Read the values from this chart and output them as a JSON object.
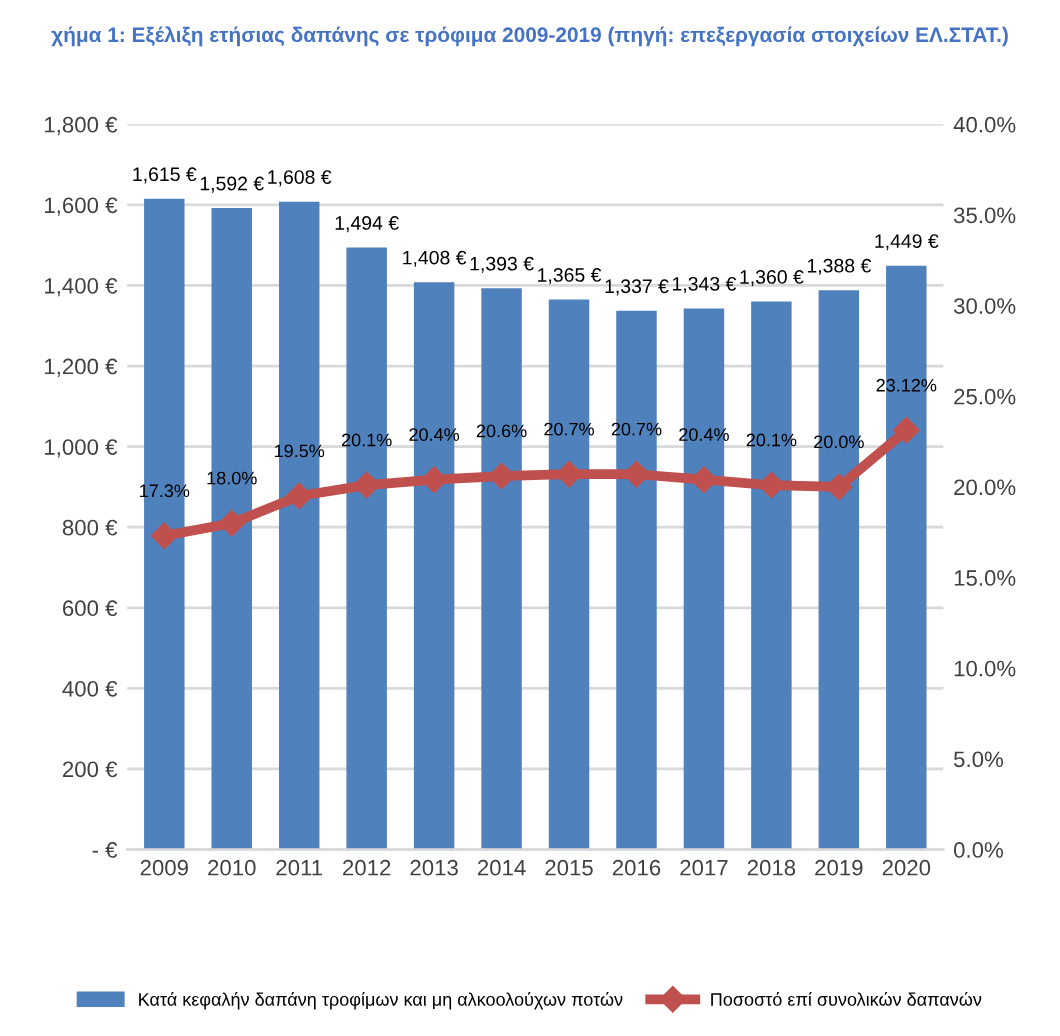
{
  "chart_data": {
    "type": "bar",
    "title": "χήμα 1: Εξέλιξη ετήσιας δαπάνης σε τρόφιμα 2009-2019 (πηγή: επεξεργασία στοιχείων ΕΛ.ΣΤΑΤ.)",
    "categories": [
      "2009",
      "2010",
      "2011",
      "2012",
      "2013",
      "2014",
      "2015",
      "2016",
      "2017",
      "2018",
      "2019",
      "2020"
    ],
    "series": [
      {
        "name": "Κατά κεφαλήν δαπάνη τροφίμων και μη αλκοολούχων ποτών",
        "color": "#4f81bd",
        "values": [
          1615,
          1592,
          1608,
          1494,
          1408,
          1393,
          1365,
          1337,
          1343,
          1360,
          1388,
          1449
        ],
        "value_labels": [
          "1,615 €",
          "1,592 €",
          "1,608 €",
          "1,494 €",
          "1,408 €",
          "1,393 €",
          "1,365 €",
          "1,337 €",
          "1,343 €",
          "1,360 €",
          "1,388 €",
          "1,449 €"
        ]
      },
      {
        "name": "Ποσοστό επί συνολικών δαπανών",
        "type": "line",
        "axis": "y2",
        "color": "#c0504d",
        "marker": "diamond",
        "values": [
          17.3,
          18.0,
          19.5,
          20.1,
          20.4,
          20.6,
          20.7,
          20.7,
          20.4,
          20.1,
          20.0,
          23.12
        ],
        "value_labels": [
          "17.3%",
          "18.0%",
          "19.5%",
          "20.1%",
          "20.4%",
          "20.6%",
          "20.7%",
          "20.7%",
          "20.4%",
          "20.1%",
          "20.0%",
          "23.12%"
        ]
      }
    ],
    "ylim": [
      0,
      1800
    ],
    "yticks": [
      {
        "value": 0,
        "label": "- €"
      },
      {
        "value": 200,
        "label": "200 €"
      },
      {
        "value": 400,
        "label": "400 €"
      },
      {
        "value": 600,
        "label": "600 €"
      },
      {
        "value": 800,
        "label": "800 €"
      },
      {
        "value": 1000,
        "label": "1,000 €"
      },
      {
        "value": 1200,
        "label": "1,200 €"
      },
      {
        "value": 1400,
        "label": "1,400 €"
      },
      {
        "value": 1600,
        "label": "1,600 €"
      },
      {
        "value": 1800,
        "label": "1,800 €"
      }
    ],
    "y2lim": [
      0,
      40
    ],
    "y2ticks": [
      {
        "value": 0,
        "label": "0.0%"
      },
      {
        "value": 5,
        "label": "5.0%"
      },
      {
        "value": 10,
        "label": "10.0%"
      },
      {
        "value": 15,
        "label": "15.0%"
      },
      {
        "value": 20,
        "label": "20.0%"
      },
      {
        "value": 25,
        "label": "25.0%"
      },
      {
        "value": 30,
        "label": "30.0%"
      },
      {
        "value": 35,
        "label": "35.0%"
      },
      {
        "value": 40,
        "label": "40.0%"
      }
    ],
    "grid": "y",
    "legend": "bottom"
  }
}
